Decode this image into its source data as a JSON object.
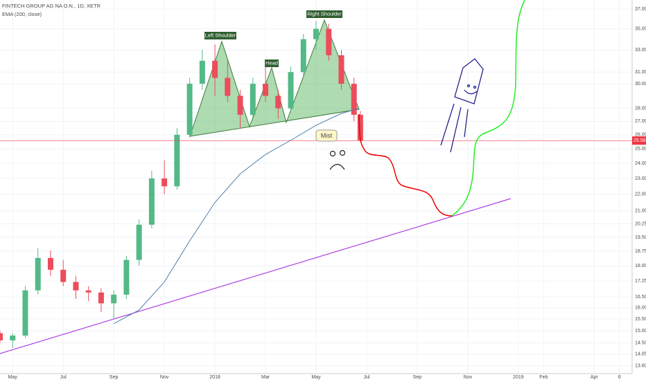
{
  "chart_data": {
    "type": "candlestick",
    "title": "FINTECH GROUP AG NA O.N., 1D, XETR",
    "indicator": "EMA (200, close)",
    "x": [
      -0.5,
      0,
      0.5,
      1,
      1.5,
      2,
      2.5,
      3,
      3.5,
      4,
      4.5,
      5,
      5.5,
      6,
      6.5,
      7,
      7.5,
      8,
      8.5,
      9,
      9.5,
      10,
      10.5,
      11,
      11.5,
      12,
      12.5,
      13,
      13.5,
      13.75
    ],
    "open": [
      14.9,
      14.6,
      14.8,
      16.8,
      18.4,
      17.8,
      17.2,
      16.8,
      16.7,
      16.2,
      16.6,
      18.3,
      20.2,
      23.0,
      22.5,
      26.0,
      30.0,
      32.0,
      30.5,
      29.0,
      27.5,
      30.0,
      29.0,
      28.0,
      31.0,
      34.0,
      35.0,
      32.5,
      30.0,
      27.5
    ],
    "high": [
      15.0,
      14.9,
      17.0,
      18.9,
      18.8,
      18.3,
      17.5,
      17.0,
      16.9,
      16.8,
      18.5,
      20.5,
      23.5,
      24.2,
      26.5,
      30.5,
      33.0,
      33.5,
      32.0,
      29.5,
      30.5,
      31.5,
      29.5,
      31.5,
      34.5,
      35.8,
      35.5,
      33.0,
      30.5,
      27.8
    ],
    "low": [
      14.5,
      14.3,
      14.7,
      16.6,
      17.5,
      17.0,
      16.4,
      16.3,
      15.8,
      15.5,
      16.4,
      18.0,
      20.0,
      22.0,
      22.3,
      25.8,
      29.5,
      29.0,
      28.5,
      26.5,
      27.3,
      28.5,
      27.2,
      27.8,
      30.5,
      33.0,
      32.0,
      29.5,
      27.0,
      25.5
    ],
    "close": [
      14.6,
      14.8,
      16.8,
      18.4,
      17.8,
      17.2,
      16.8,
      16.7,
      16.2,
      16.6,
      18.3,
      20.2,
      23.0,
      22.5,
      26.0,
      30.0,
      32.0,
      30.5,
      29.0,
      27.5,
      30.0,
      29.0,
      28.0,
      31.0,
      34.0,
      35.0,
      32.5,
      30.0,
      27.5,
      25.58
    ],
    "up_color": "#53b987",
    "down_color": "#eb4d5c",
    "ema": {
      "color": "#4a7fb0",
      "x": [
        4,
        5,
        6,
        7,
        8,
        9,
        10,
        11,
        12,
        13,
        13.7
      ],
      "values": [
        15.3,
        15.9,
        17.2,
        19.3,
        21.5,
        23.3,
        24.6,
        25.6,
        26.7,
        27.6,
        28.0
      ]
    },
    "last_price": 25.58,
    "last_price_color": "#f23645",
    "annotations": [
      "Left Shoulder",
      "Head",
      "Right Shoulder",
      "Mist"
    ],
    "xlim": [
      -0.5,
      24.5
    ],
    "xticks": [
      {
        "value": 0,
        "label": "May"
      },
      {
        "value": 2,
        "label": "Jul"
      },
      {
        "value": 4,
        "label": "Sep"
      },
      {
        "value": 6,
        "label": "Nov"
      },
      {
        "value": 8,
        "label": "2018"
      },
      {
        "value": 10,
        "label": "Mar"
      },
      {
        "value": 12,
        "label": "May"
      },
      {
        "value": 14,
        "label": "Jul"
      },
      {
        "value": 16,
        "label": "Sep"
      },
      {
        "value": 18,
        "label": "Nov"
      },
      {
        "value": 20,
        "label": "2019"
      },
      {
        "value": 21,
        "label": "Feb"
      },
      {
        "value": 23,
        "label": "Apr"
      },
      {
        "value": 24,
        "label": "6"
      }
    ],
    "ylim": [
      13.3,
      37.95
    ],
    "log_scale": true,
    "grid": true,
    "yticks": [
      {
        "value": 37,
        "label": "37.00"
      },
      {
        "value": 35,
        "label": "35.00"
      },
      {
        "value": 33,
        "label": "33.00"
      },
      {
        "value": 31,
        "label": "31.00"
      },
      {
        "value": 30,
        "label": "30.00"
      },
      {
        "value": 28,
        "label": "28.00"
      },
      {
        "value": 27,
        "label": "27.00"
      },
      {
        "value": 26,
        "label": "26.00"
      },
      {
        "value": 25,
        "label": "25.00"
      },
      {
        "value": 24,
        "label": "24.00"
      },
      {
        "value": 23,
        "label": "23.00"
      },
      {
        "value": 22,
        "label": "22.00"
      },
      {
        "value": 21,
        "label": "21.00"
      },
      {
        "value": 20.25,
        "label": "20.25"
      },
      {
        "value": 19.5,
        "label": "19.50"
      },
      {
        "value": 18.75,
        "label": "18.75"
      },
      {
        "value": 18,
        "label": "18.00"
      },
      {
        "value": 17.25,
        "label": "17.25"
      },
      {
        "value": 16.5,
        "label": "16.50"
      },
      {
        "value": 16,
        "label": "16.00"
      },
      {
        "value": 15.5,
        "label": "15.50"
      },
      {
        "value": 15,
        "label": "15.00"
      },
      {
        "value": 14.5,
        "label": "14.50"
      },
      {
        "value": 14.05,
        "label": "14.05"
      },
      {
        "value": 13.6,
        "label": "13.60"
      }
    ]
  }
}
